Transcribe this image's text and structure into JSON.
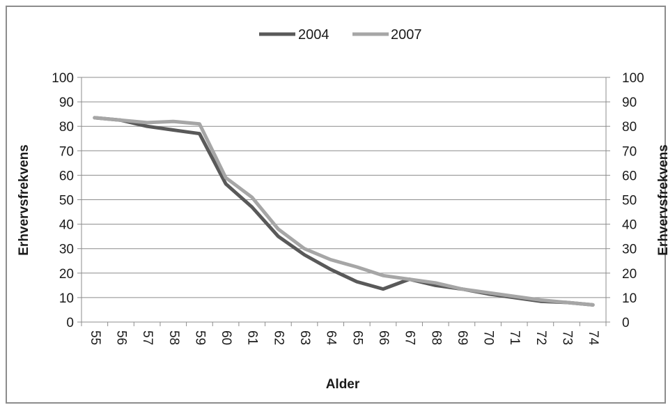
{
  "chart_data": {
    "type": "line",
    "title": "",
    "xlabel": "Alder",
    "ylabel": "Erhvervsfrekvens",
    "ylabel_right": "Erhvervsfrekvens",
    "ylim": [
      0,
      100
    ],
    "yticks": [
      0,
      10,
      20,
      30,
      40,
      50,
      60,
      70,
      80,
      90,
      100
    ],
    "grid": "horizontal",
    "legend_position": "top-center",
    "categories": [
      "55",
      "56",
      "57",
      "58",
      "59",
      "60",
      "61",
      "62",
      "63",
      "64",
      "65",
      "66",
      "67",
      "68",
      "69",
      "70",
      "71",
      "72",
      "73",
      "74"
    ],
    "series": [
      {
        "name": "2004",
        "color": "#595959",
        "values": [
          83.5,
          82.5,
          80,
          78.5,
          77,
          56.5,
          47,
          35,
          27.5,
          21.5,
          16.5,
          13.5,
          17.5,
          15,
          13.5,
          11.5,
          10,
          8.5,
          8,
          7
        ]
      },
      {
        "name": "2007",
        "color": "#a6a6a6",
        "values": [
          83.5,
          82.5,
          81.5,
          82,
          81,
          59,
          51,
          38,
          30,
          25.5,
          22.5,
          19,
          17.5,
          16,
          13.5,
          12,
          10.5,
          9,
          8,
          7
        ]
      }
    ]
  }
}
